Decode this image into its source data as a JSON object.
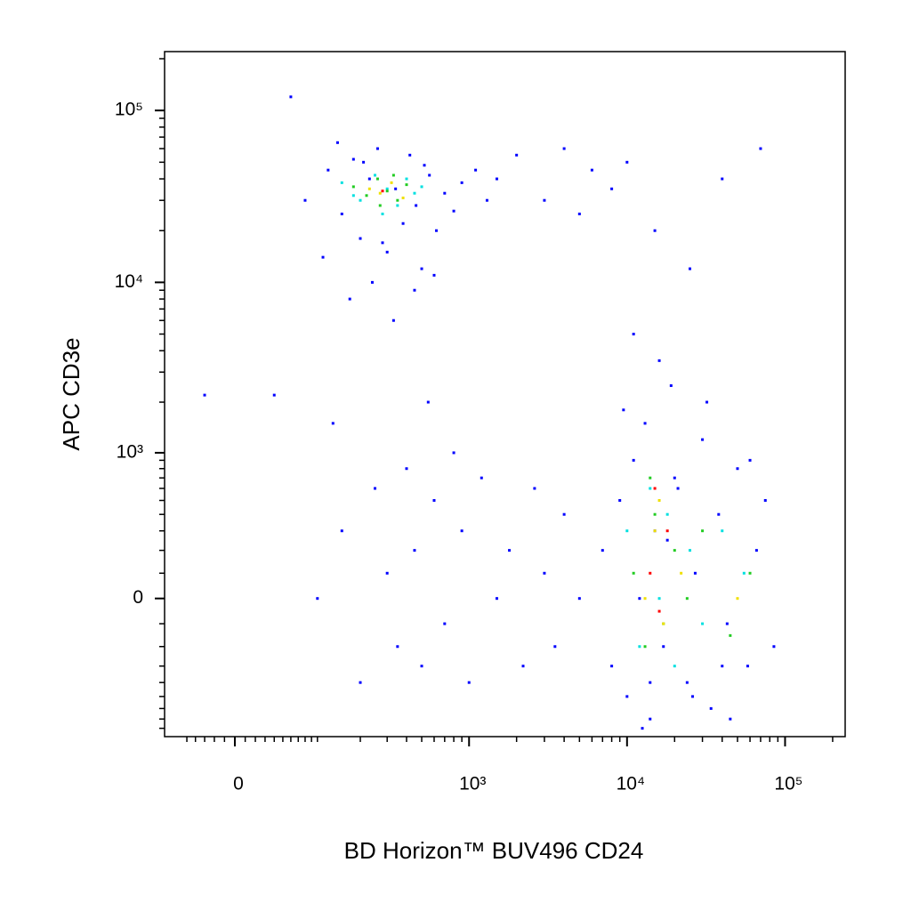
{
  "chart_data": {
    "type": "scatter",
    "x_label": "BD Horizon™ BUV496 CD24",
    "y_label": "APC CD3e",
    "xscale": "biexponential",
    "yscale": "biexponential",
    "xlim": [
      -80,
      240000
    ],
    "ylim": [
      -900,
      220000
    ],
    "xticks": [
      0,
      {
        "value": 1000,
        "label": "10³"
      },
      {
        "value": 10000,
        "label": "10⁴"
      },
      {
        "value": 100000,
        "label": "10⁵"
      }
    ],
    "yticks": [
      0,
      {
        "value": 1000,
        "label": "10³"
      },
      {
        "value": 10000,
        "label": "10⁴"
      },
      {
        "value": 100000,
        "label": "10⁵"
      }
    ],
    "xminorticks": [
      -50,
      -40,
      -30,
      -20,
      -10,
      10,
      20,
      30,
      40,
      50,
      60,
      70,
      80,
      90,
      100,
      200,
      300,
      400,
      500,
      600,
      700,
      800,
      900,
      2000,
      3000,
      4000,
      5000,
      6000,
      7000,
      8000,
      9000,
      20000,
      30000,
      40000,
      50000,
      60000,
      70000,
      80000,
      90000,
      200000
    ],
    "yminorticks": [
      -800,
      -700,
      -600,
      -500,
      -400,
      -300,
      -200,
      -100,
      100,
      200,
      300,
      400,
      500,
      600,
      700,
      800,
      900,
      2000,
      3000,
      4000,
      5000,
      6000,
      7000,
      8000,
      9000,
      20000,
      30000,
      40000,
      50000,
      60000,
      70000,
      80000,
      90000,
      200000
    ],
    "series": [
      {
        "color": "#0000ff",
        "x": [
          80,
          120,
          150,
          180,
          200,
          230,
          260,
          300,
          340,
          380,
          420,
          460,
          500,
          560,
          620,
          700,
          800,
          900,
          1100,
          1300,
          110,
          170,
          240,
          330,
          450,
          600,
          140,
          210,
          280,
          520,
          7000,
          8000,
          9000,
          10000,
          11000,
          12000,
          13000,
          14000,
          15000,
          17000,
          19000,
          21000,
          24000,
          27000,
          30000,
          34000,
          38000,
          43000,
          50000,
          58000,
          66000,
          75000,
          85000,
          9500,
          12500,
          16000,
          20000,
          26000,
          32000,
          45000,
          60000,
          11000,
          14000,
          18000,
          40000,
          100,
          150,
          200,
          250,
          300,
          350,
          400,
          450,
          500,
          600,
          700,
          800,
          900,
          1000,
          1200,
          1500,
          1800,
          2200,
          2600,
          3000,
          3500,
          4000,
          5000,
          130,
          550,
          1500,
          2000,
          3000,
          4000,
          5000,
          6000,
          8000,
          10000,
          15000,
          25000,
          40000,
          70000,
          -30,
          40,
          60
        ],
        "y": [
          30000,
          45000,
          25000,
          52000,
          18000,
          40000,
          60000,
          15000,
          35000,
          22000,
          55000,
          28000,
          12000,
          42000,
          20000,
          33000,
          26000,
          38000,
          45000,
          30000,
          14000,
          8000,
          10000,
          6000,
          9000,
          11000,
          65000,
          50000,
          17000,
          48000,
          200,
          -300,
          500,
          -500,
          900,
          0,
          1500,
          -700,
          300,
          -200,
          2500,
          600,
          -400,
          100,
          1200,
          -600,
          400,
          -100,
          800,
          -300,
          200,
          500,
          -200,
          1800,
          -800,
          3500,
          700,
          -500,
          2000,
          -700,
          900,
          5000,
          -400,
          250,
          -300,
          0,
          300,
          -400,
          600,
          100,
          -200,
          800,
          200,
          -300,
          500,
          -100,
          1000,
          300,
          -400,
          700,
          0,
          200,
          -300,
          600,
          100,
          -200,
          400,
          0,
          1500,
          2000,
          40000,
          55000,
          30000,
          60000,
          25000,
          45000,
          35000,
          50000,
          20000,
          12000,
          40000,
          60000,
          2200,
          2200,
          120000
        ]
      },
      {
        "color": "#00e0e0",
        "x": [
          150,
          200,
          250,
          300,
          350,
          400,
          450,
          500,
          180,
          280,
          10000,
          12000,
          14000,
          16000,
          18000,
          20000,
          25000,
          30000,
          40000,
          55000
        ],
        "y": [
          38000,
          30000,
          42000,
          35000,
          28000,
          40000,
          33000,
          36000,
          32000,
          25000,
          300,
          -200,
          600,
          0,
          400,
          -300,
          200,
          -100,
          300,
          100
        ]
      },
      {
        "color": "#22cc22",
        "x": [
          180,
          220,
          260,
          300,
          350,
          400,
          270,
          330,
          11000,
          13000,
          15000,
          17000,
          20000,
          24000,
          30000,
          45000,
          60000,
          14000
        ],
        "y": [
          36000,
          32000,
          40000,
          34000,
          30000,
          37000,
          28000,
          42000,
          100,
          -200,
          400,
          -100,
          200,
          0,
          300,
          -150,
          100,
          700
        ]
      },
      {
        "color": "#f0e000",
        "x": [
          230,
          270,
          320,
          380,
          13000,
          15000,
          17000,
          22000,
          50000,
          16000
        ],
        "y": [
          35000,
          33000,
          38000,
          31000,
          0,
          300,
          -100,
          100,
          0,
          500
        ]
      },
      {
        "color": "#ff0000",
        "x": [
          280,
          14000,
          16000,
          18000,
          15000
        ],
        "y": [
          34000,
          100,
          -50,
          300,
          600
        ]
      }
    ]
  }
}
